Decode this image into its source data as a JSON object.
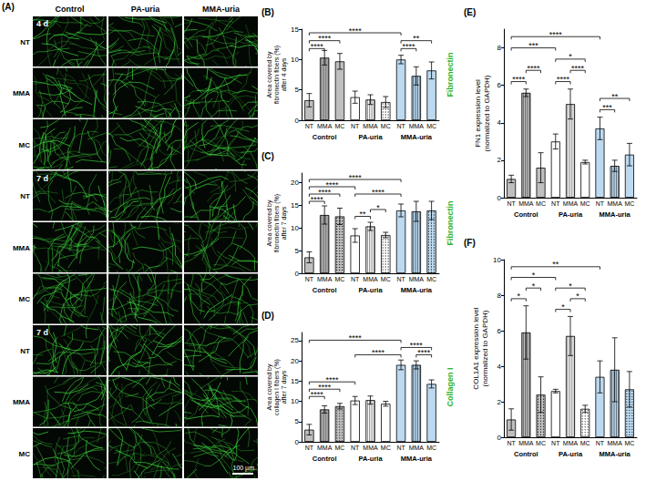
{
  "image_panel": {
    "panel": "(A)",
    "columns": [
      "Control",
      "PA-uria",
      "MMA-uria"
    ],
    "sections": [
      {
        "time": "4 d",
        "rows": [
          "NT",
          "MMA",
          "MC"
        ]
      },
      {
        "time": "7 d",
        "rows": [
          "NT",
          "MMA",
          "MC"
        ]
      },
      {
        "time": "7 d",
        "rows": [
          "NT",
          "MMA",
          "MC"
        ]
      }
    ],
    "scale_bar": "100 µm"
  },
  "chart_data": [
    {
      "panel": "(B)",
      "type": "bar",
      "ylabel": "Area covered by fibronectin fibers (%) after 4 days",
      "side_label": "Fibronectin",
      "categories": [
        "NT",
        "MMA",
        "MC",
        "NT",
        "MMA",
        "MC",
        "NT",
        "MMA",
        "MC"
      ],
      "groups": [
        "Control",
        "PA-uria",
        "MMA-uria"
      ],
      "values": [
        3.3,
        10.3,
        9.7,
        3.8,
        3.4,
        3.0,
        10.0,
        7.3,
        8.2
      ],
      "errors": [
        1.1,
        1.2,
        1.3,
        1.0,
        0.8,
        0.9,
        0.7,
        1.5,
        1.4
      ],
      "colors": [
        "#bfbfbf",
        "#bfbfbf",
        "#bfbfbf",
        "#ffffff",
        "#ffffff",
        "#ffffff",
        "#bcd9f0",
        "#bcd9f0",
        "#bcd9f0"
      ],
      "ylim": [
        0,
        15
      ],
      "yticks": [
        0,
        5,
        10,
        15
      ],
      "grid": false,
      "significance": [
        {
          "from": 0,
          "to": 1,
          "y": 11.8,
          "label": "****"
        },
        {
          "from": 0,
          "to": 2,
          "y": 13.1,
          "label": "****"
        },
        {
          "from": 0,
          "to": 6,
          "y": 14.4,
          "label": "****"
        },
        {
          "from": 6,
          "to": 7,
          "y": 11.8,
          "label": "****"
        },
        {
          "from": 6,
          "to": 8,
          "y": 13.1,
          "label": "**"
        }
      ]
    },
    {
      "panel": "(C)",
      "type": "bar",
      "ylabel": "Area covered by fibronectin fibers (%) after 7 days",
      "side_label": "Fibronectin",
      "categories": [
        "NT",
        "MMA",
        "MC",
        "NT",
        "MMA",
        "MC",
        "NT",
        "MMA",
        "MC"
      ],
      "groups": [
        "Control",
        "PA-uria",
        "MMA-uria"
      ],
      "values": [
        3.5,
        12.8,
        12.5,
        8.3,
        10.3,
        8.4,
        13.8,
        13.6,
        13.8
      ],
      "errors": [
        1.2,
        2.0,
        1.8,
        1.5,
        0.9,
        0.6,
        1.4,
        2.2,
        2.0
      ],
      "colors": [
        "#bfbfbf",
        "#bfbfbf",
        "#bfbfbf",
        "#ffffff",
        "#ffffff",
        "#ffffff",
        "#bcd9f0",
        "#bcd9f0",
        "#bcd9f0"
      ],
      "ylim": [
        0,
        22
      ],
      "yticks": [
        0,
        5,
        10,
        15,
        20
      ],
      "grid": false,
      "significance": [
        {
          "from": 0,
          "to": 1,
          "y": 15.8,
          "label": "****"
        },
        {
          "from": 0,
          "to": 2,
          "y": 17.4,
          "label": "****"
        },
        {
          "from": 3,
          "to": 4,
          "y": 12.5,
          "label": "**"
        },
        {
          "from": 4,
          "to": 5,
          "y": 14.0,
          "label": "*"
        },
        {
          "from": 3,
          "to": 6,
          "y": 17.4,
          "label": "****"
        },
        {
          "from": 0,
          "to": 3,
          "y": 19.0,
          "label": "****"
        },
        {
          "from": 0,
          "to": 6,
          "y": 20.6,
          "label": "****"
        }
      ]
    },
    {
      "panel": "(D)",
      "type": "bar",
      "ylabel": "Area covered by collagen I fibers (%) after 7 days",
      "side_label": "Collagen I",
      "categories": [
        "NT",
        "MMA",
        "MC",
        "NT",
        "MMA",
        "MC",
        "NT",
        "MMA",
        "MC"
      ],
      "groups": [
        "Control",
        "PA-uria",
        "MMA-uria"
      ],
      "values": [
        3.0,
        8.0,
        8.8,
        10.2,
        10.3,
        9.4,
        19.0,
        19.0,
        14.3
      ],
      "errors": [
        1.3,
        0.9,
        0.7,
        1.0,
        1.0,
        0.6,
        1.2,
        1.0,
        1.0
      ],
      "colors": [
        "#bfbfbf",
        "#bfbfbf",
        "#bfbfbf",
        "#ffffff",
        "#ffffff",
        "#ffffff",
        "#bcd9f0",
        "#bcd9f0",
        "#bcd9f0"
      ],
      "ylim": [
        0,
        27
      ],
      "yticks": [
        0,
        5,
        10,
        15,
        20,
        25
      ],
      "grid": false,
      "significance": [
        {
          "from": 0,
          "to": 1,
          "y": 11.2,
          "label": "****"
        },
        {
          "from": 0,
          "to": 2,
          "y": 13.0,
          "label": "****"
        },
        {
          "from": 0,
          "to": 3,
          "y": 14.8,
          "label": "****"
        },
        {
          "from": 3,
          "to": 6,
          "y": 21.5,
          "label": "****"
        },
        {
          "from": 7,
          "to": 8,
          "y": 21.5,
          "label": "****"
        },
        {
          "from": 6,
          "to": 8,
          "y": 23.3,
          "label": "****"
        },
        {
          "from": 0,
          "to": 6,
          "y": 25.1,
          "label": "****"
        }
      ]
    },
    {
      "panel": "(E)",
      "type": "bar",
      "ylabel": "FN1 expression level (normalized to GAPDH)",
      "categories": [
        "NT",
        "MMA",
        "MC",
        "NT",
        "MMA",
        "MC",
        "NT",
        "MMA",
        "MC"
      ],
      "groups": [
        "Control",
        "PA-uria",
        "MMA-uria"
      ],
      "values": [
        1.0,
        5.6,
        1.6,
        3.0,
        5.0,
        1.9,
        3.7,
        1.7,
        2.3
      ],
      "errors": [
        0.2,
        0.2,
        0.8,
        0.4,
        0.8,
        0.1,
        0.6,
        0.3,
        0.6
      ],
      "colors": [
        "#bfbfbf",
        "#bfbfbf",
        "#bfbfbf",
        "#ffffff",
        "#ffffff",
        "#ffffff",
        "#bcd9f0",
        "#bcd9f0",
        "#bcd9f0"
      ],
      "ylim": [
        0,
        9
      ],
      "yticks": [
        0,
        2,
        4,
        6,
        8
      ],
      "grid": false,
      "significance": [
        {
          "from": 0,
          "to": 1,
          "y": 6.2,
          "label": "****"
        },
        {
          "from": 1,
          "to": 2,
          "y": 6.8,
          "label": "****"
        },
        {
          "from": 3,
          "to": 4,
          "y": 6.2,
          "label": "****"
        },
        {
          "from": 4,
          "to": 5,
          "y": 6.8,
          "label": "****"
        },
        {
          "from": 3,
          "to": 5,
          "y": 7.4,
          "label": "*"
        },
        {
          "from": 0,
          "to": 3,
          "y": 8.0,
          "label": "***"
        },
        {
          "from": 0,
          "to": 6,
          "y": 8.6,
          "label": "****"
        },
        {
          "from": 6,
          "to": 7,
          "y": 4.7,
          "label": "***"
        },
        {
          "from": 6,
          "to": 8,
          "y": 5.3,
          "label": "**"
        }
      ]
    },
    {
      "panel": "(F)",
      "type": "bar",
      "ylabel": "COL1A1 expression level (normalized to GAPDH)",
      "categories": [
        "NT",
        "MMA",
        "MC",
        "NT",
        "MMA",
        "MC",
        "NT",
        "MMA",
        "MC"
      ],
      "groups": [
        "Control",
        "PA-uria",
        "MMA-uria"
      ],
      "values": [
        1.0,
        5.9,
        2.4,
        2.6,
        5.7,
        1.6,
        3.4,
        3.8,
        2.7
      ],
      "errors": [
        0.6,
        1.5,
        1.0,
        0.1,
        1.1,
        0.2,
        0.9,
        1.8,
        1.0
      ],
      "colors": [
        "#bfbfbf",
        "#bfbfbf",
        "#bfbfbf",
        "#ffffff",
        "#ffffff",
        "#ffffff",
        "#bcd9f0",
        "#bcd9f0",
        "#bcd9f0"
      ],
      "ylim": [
        0,
        10
      ],
      "yticks": [
        0,
        2,
        4,
        6,
        8,
        10
      ],
      "grid": false,
      "significance": [
        {
          "from": 0,
          "to": 1,
          "y": 7.8,
          "label": "*"
        },
        {
          "from": 1,
          "to": 2,
          "y": 8.4,
          "label": "*"
        },
        {
          "from": 3,
          "to": 4,
          "y": 7.2,
          "label": "*"
        },
        {
          "from": 4,
          "to": 5,
          "y": 7.8,
          "label": "*"
        },
        {
          "from": 3,
          "to": 5,
          "y": 8.4,
          "label": "*"
        },
        {
          "from": 0,
          "to": 3,
          "y": 9.0,
          "label": "*"
        },
        {
          "from": 0,
          "to": 6,
          "y": 9.6,
          "label": "**"
        }
      ]
    }
  ]
}
